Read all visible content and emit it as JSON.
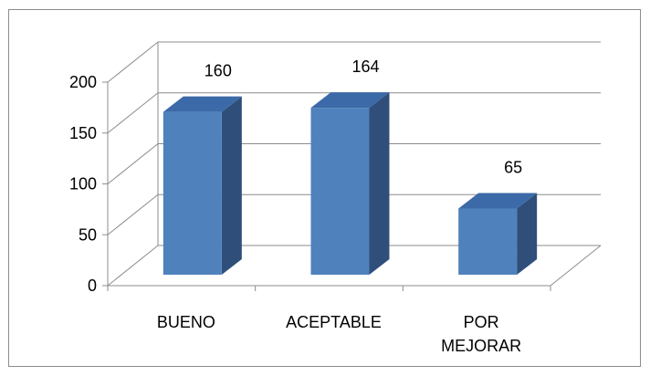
{
  "chart_data": {
    "type": "bar",
    "categories": [
      "BUENO",
      "ACEPTABLE",
      "POR MEJORAR"
    ],
    "category_lines": [
      [
        "BUENO"
      ],
      [
        "ACEPTABLE"
      ],
      [
        "POR",
        "MEJORAR"
      ]
    ],
    "values": [
      160,
      164,
      65
    ],
    "data_labels": [
      "160",
      "164",
      "65"
    ],
    "ylim": [
      0,
      200
    ],
    "yticks": [
      0,
      50,
      100,
      150,
      200
    ],
    "ytick_labels": [
      "0",
      "50",
      "100",
      "150",
      "200"
    ],
    "title": "",
    "xlabel": "",
    "ylabel": "",
    "grid": true,
    "style": "3d-column",
    "colors": {
      "bar_front": "#4f81bd",
      "bar_side": "#2f4f7a",
      "bar_top": "#3c6aa8",
      "grid": "#8c8c8c"
    }
  }
}
